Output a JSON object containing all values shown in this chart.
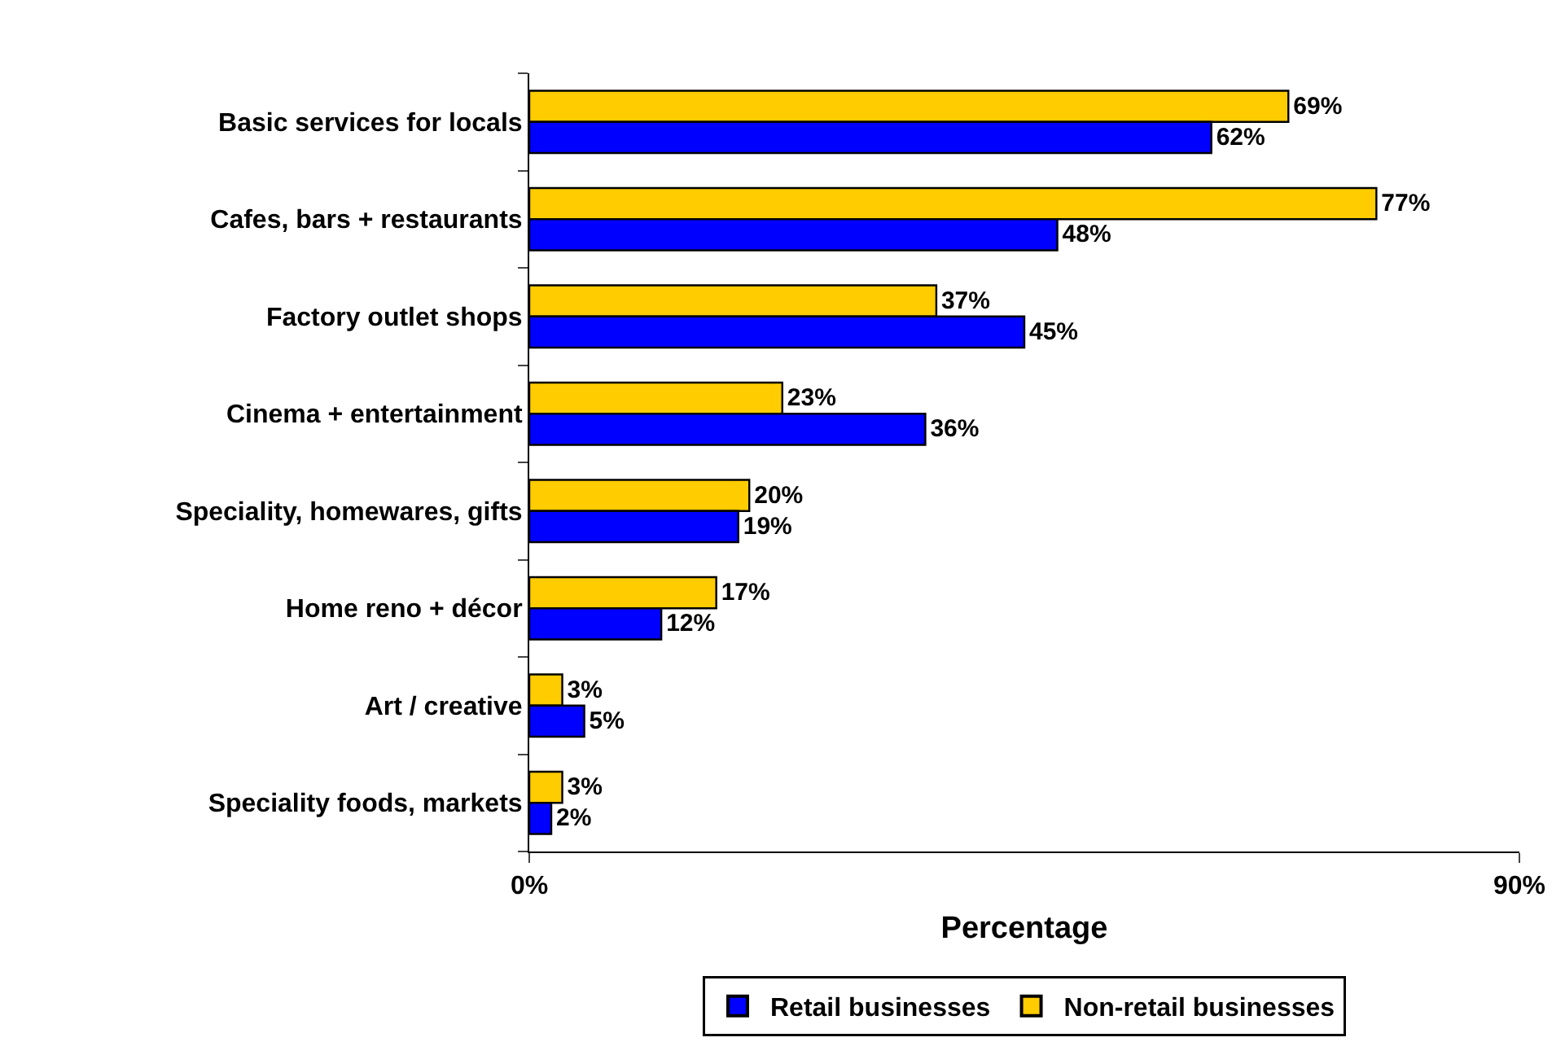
{
  "chart_data": {
    "type": "bar",
    "orientation": "horizontal",
    "xlabel": "Percentage",
    "categories": [
      "Basic services for locals",
      "Cafes, bars + restaurants",
      "Factory outlet shops",
      "Cinema + entertainment",
      "Speciality, homewares, gifts",
      "Home reno + décor",
      "Art / creative",
      "Speciality foods, markets"
    ],
    "series": [
      {
        "name": "Retail businesses",
        "color": "#0000ff",
        "values": [
          62,
          48,
          45,
          36,
          19,
          12,
          5,
          2
        ],
        "value_labels": [
          "62%",
          "48%",
          "45%",
          "36%",
          "19%",
          "12%",
          "5%",
          "2%"
        ]
      },
      {
        "name": "Non-retail businesses",
        "color": "#ffcc00",
        "values": [
          69,
          77,
          37,
          23,
          20,
          17,
          3,
          3
        ],
        "value_labels": [
          "69%",
          "77%",
          "37%",
          "23%",
          "20%",
          "17%",
          "3%",
          "3%"
        ]
      }
    ],
    "xlim": [
      0,
      90
    ],
    "xticks": [
      {
        "value": 0,
        "label": "0%"
      },
      {
        "value": 90,
        "label": "90%"
      }
    ],
    "legend": "bottom"
  }
}
